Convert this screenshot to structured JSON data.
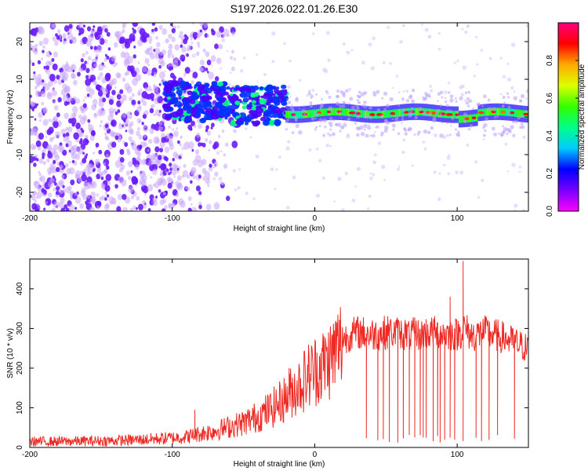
{
  "figure": {
    "title": "S197.2026.022.01.26.E30"
  },
  "colors": {
    "snr_line": "#ee2a24",
    "axis": "#000000",
    "background": "#ffffff",
    "colormap_stops": [
      "#ff00ff",
      "#7700ff",
      "#0000ff",
      "#00ccff",
      "#00ff88",
      "#33ff00",
      "#ddff00",
      "#ffaa00",
      "#ff0000",
      "#ff0080"
    ]
  },
  "chart_data": [
    {
      "type": "heatmap",
      "name": "spectrogram",
      "xlabel": "Height of straight line (km)",
      "ylabel": "Frequency (Hz)",
      "xlim": [
        -200,
        150
      ],
      "ylim": [
        -25,
        25
      ],
      "xticks": [
        -200,
        -100,
        0,
        100
      ],
      "yticks": [
        -20,
        -10,
        0,
        10,
        20
      ],
      "colorbar": {
        "label": "Normalized spectral amplitude",
        "range": [
          0.0,
          1.0
        ],
        "ticks": [
          0.0,
          0.2,
          0.4,
          0.6,
          0.8
        ]
      },
      "features": [
        {
          "description": "noise",
          "x_range": [
            -200,
            -105
          ],
          "amplitude": 0.05
        },
        {
          "description": "signal band",
          "x_range": [
            -105,
            -20
          ],
          "frequency_center": 3,
          "amplitude": 0.25
        },
        {
          "description": "signal band",
          "x_range": [
            -20,
            150
          ],
          "frequency_center": 1,
          "amplitude": 0.9
        }
      ]
    },
    {
      "type": "line",
      "name": "snr",
      "xlabel": "Height of straight line (km)",
      "ylabel": "SNR (10 * v/v)",
      "xlim": [
        -200,
        150
      ],
      "ylim": [
        0,
        475
      ],
      "xticks": [
        -200,
        -100,
        0,
        100
      ],
      "yticks": [
        0,
        100,
        200,
        300,
        400
      ],
      "series": [
        {
          "name": "SNR",
          "x": [
            -200,
            -180,
            -160,
            -140,
            -120,
            -100,
            -90,
            -80,
            -70,
            -60,
            -50,
            -40,
            -30,
            -20,
            -15,
            -10,
            -5,
            0,
            5,
            10,
            15,
            20,
            25,
            30,
            35,
            40,
            50,
            60,
            70,
            80,
            90,
            100,
            105,
            110,
            120,
            130,
            140,
            150
          ],
          "y": [
            15,
            15,
            16,
            17,
            20,
            24,
            27,
            35,
            42,
            52,
            62,
            78,
            98,
            125,
            145,
            160,
            180,
            195,
            205,
            220,
            245,
            272,
            285,
            290,
            288,
            285,
            290,
            288,
            285,
            290,
            288,
            285,
            300,
            282,
            290,
            280,
            265,
            248
          ]
        }
      ],
      "dropouts_x": [
        36,
        44,
        48,
        52,
        58,
        62,
        66,
        70,
        74,
        76,
        78,
        83,
        86,
        88,
        91,
        95,
        98,
        104,
        113,
        117,
        122,
        128,
        140
      ],
      "spikes": [
        {
          "x": -84,
          "y": 95
        },
        {
          "x": -18,
          "y": 200
        },
        {
          "x": 95,
          "y": 380
        },
        {
          "x": 104,
          "y": 470
        }
      ]
    }
  ]
}
